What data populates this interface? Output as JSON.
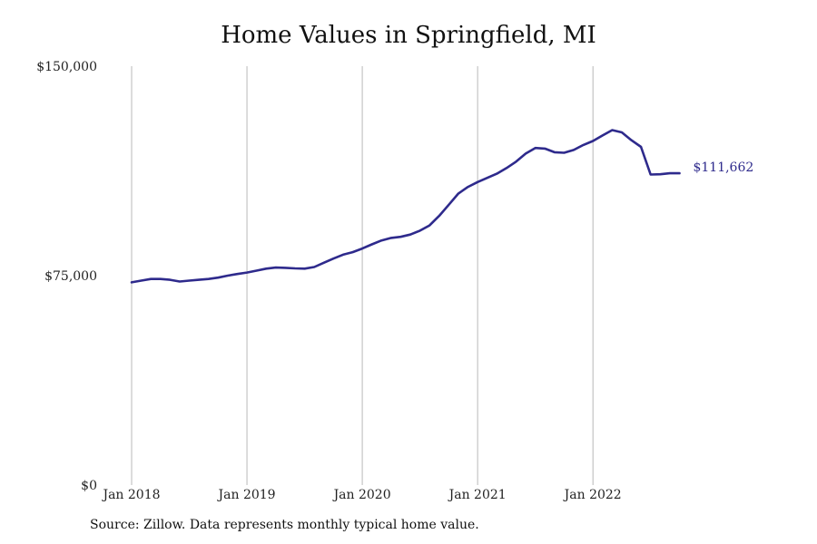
{
  "colors": {
    "line": "#2e2a8c",
    "grid": "#b9b9b9",
    "text": "#222222",
    "background": "#ffffff"
  },
  "source_note": "Source: Zillow. Data represents monthly typical home value.",
  "chart_data": {
    "type": "line",
    "title": "Home Values in Springfield, MI",
    "xlabel": "",
    "ylabel": "",
    "ylim": [
      0,
      150000
    ],
    "xlim": [
      "2018-01",
      "2023-04"
    ],
    "y_ticks": [
      {
        "value": 0,
        "label": "$0"
      },
      {
        "value": 75000,
        "label": "$75,000"
      },
      {
        "value": 150000,
        "label": "$150,000"
      }
    ],
    "x_ticks": [
      {
        "value": "2018-01",
        "label": "Jan 2018"
      },
      {
        "value": "2019-01",
        "label": "Jan 2019"
      },
      {
        "value": "2020-01",
        "label": "Jan 2020"
      },
      {
        "value": "2021-01",
        "label": "Jan 2021"
      },
      {
        "value": "2022-01",
        "label": "Jan 2022"
      }
    ],
    "grid": {
      "vertical": true,
      "horizontal": false
    },
    "legend": "none",
    "end_label": "$111,662",
    "series": [
      {
        "x": [
          "2018-01",
          "2018-02",
          "2018-03",
          "2018-04",
          "2018-05",
          "2018-06",
          "2018-07",
          "2018-08",
          "2018-09",
          "2018-10",
          "2018-11",
          "2018-12",
          "2019-01",
          "2019-02",
          "2019-03",
          "2019-04",
          "2019-05",
          "2019-06",
          "2019-07",
          "2019-08",
          "2019-09",
          "2019-10",
          "2019-11",
          "2019-12",
          "2020-01",
          "2020-02",
          "2020-03",
          "2020-04",
          "2020-05",
          "2020-06",
          "2020-07",
          "2020-08",
          "2020-09",
          "2020-10",
          "2020-11",
          "2020-12",
          "2021-01",
          "2021-02",
          "2021-03",
          "2021-04",
          "2021-05",
          "2021-06",
          "2021-07",
          "2021-08",
          "2021-09",
          "2021-10",
          "2021-11",
          "2021-12",
          "2022-01",
          "2022-02",
          "2022-03",
          "2022-04",
          "2022-05",
          "2022-06",
          "2022-07",
          "2022-08",
          "2022-09",
          "2022-10"
        ],
        "values": [
          72600,
          73200,
          73800,
          73800,
          73500,
          72900,
          73200,
          73500,
          73800,
          74300,
          75000,
          75600,
          76100,
          76800,
          77500,
          77900,
          77800,
          77600,
          77500,
          78100,
          79600,
          81100,
          82500,
          83400,
          84700,
          86200,
          87600,
          88500,
          88900,
          89700,
          91100,
          93000,
          96400,
          100400,
          104400,
          106800,
          108500,
          110000,
          111500,
          113500,
          115800,
          118700,
          120700,
          120500,
          119200,
          119000,
          120000,
          121800,
          123200,
          125200,
          127100,
          126300,
          123500,
          121100,
          111200,
          111300,
          111662,
          111662
        ]
      }
    ]
  }
}
